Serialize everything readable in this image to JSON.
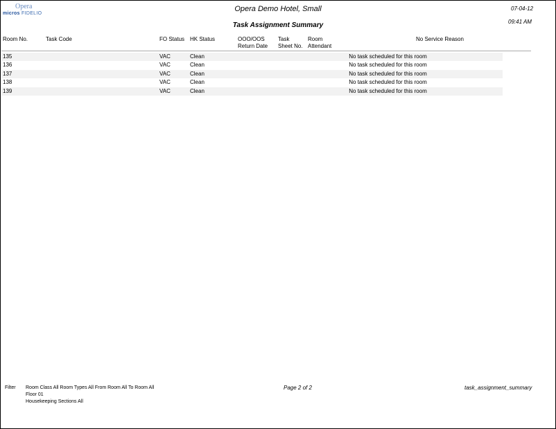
{
  "logo": {
    "top": "Opera",
    "brand": "micros",
    "sub": "FIDELIO"
  },
  "header": {
    "hotel": "Opera Demo Hotel, Small",
    "title": "Task Assignment Summary",
    "date": "07-04-12",
    "time": "09:41 AM"
  },
  "columns": [
    "Room No.",
    "Task Code",
    "FO Status",
    "HK Status",
    "OOO/OOS\nReturn Date",
    "Task\nSheet No.",
    "Room\nAttendant",
    "No Service Reason"
  ],
  "rows": [
    {
      "room": "135",
      "fo": "VAC",
      "hk": "Clean",
      "reason": "No task scheduled for this room"
    },
    {
      "room": "136",
      "fo": "VAC",
      "hk": "Clean",
      "reason": "No task scheduled for this room"
    },
    {
      "room": "137",
      "fo": "VAC",
      "hk": "Clean",
      "reason": "No task scheduled for this room"
    },
    {
      "room": "138",
      "fo": "VAC",
      "hk": "Clean",
      "reason": "No task scheduled for this room"
    },
    {
      "room": "139",
      "fo": "VAC",
      "hk": "Clean",
      "reason": "No task scheduled for this room"
    }
  ],
  "footer": {
    "filter_label": "Filter",
    "filter_lines": [
      "Room Class All   Room Types All From Room All  To Room All",
      "Floor 01",
      "Housekeeping Sections All"
    ],
    "page": "Page 2 of 2",
    "report_name": "task_assignment_summary"
  }
}
